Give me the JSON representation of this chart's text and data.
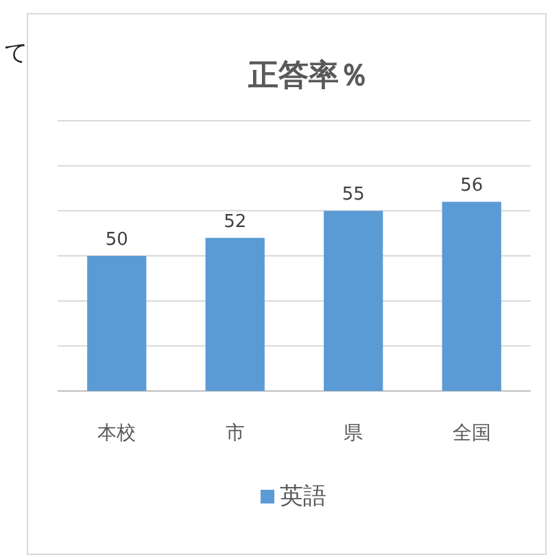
{
  "chart_data": {
    "type": "bar",
    "title": "正答率％",
    "categories": [
      "本校",
      "市",
      "県",
      "全国"
    ],
    "series": [
      {
        "name": "英語",
        "color": "#5b9bd5",
        "values": [
          50,
          52,
          55,
          56
        ]
      }
    ],
    "ylim": [
      35,
      65
    ],
    "yticks": [
      {
        "value": 35,
        "label": null
      },
      {
        "value": 40,
        "label": null
      },
      {
        "value": 45,
        "label": null
      },
      {
        "value": 50,
        "label": null
      },
      {
        "value": 55,
        "label": null
      },
      {
        "value": 60,
        "label": null
      },
      {
        "value": 65,
        "label": null
      }
    ],
    "tick_labels": "x",
    "grid": "y",
    "data_labels": true,
    "legend": "bottom",
    "annotations": [
      "て"
    ]
  }
}
